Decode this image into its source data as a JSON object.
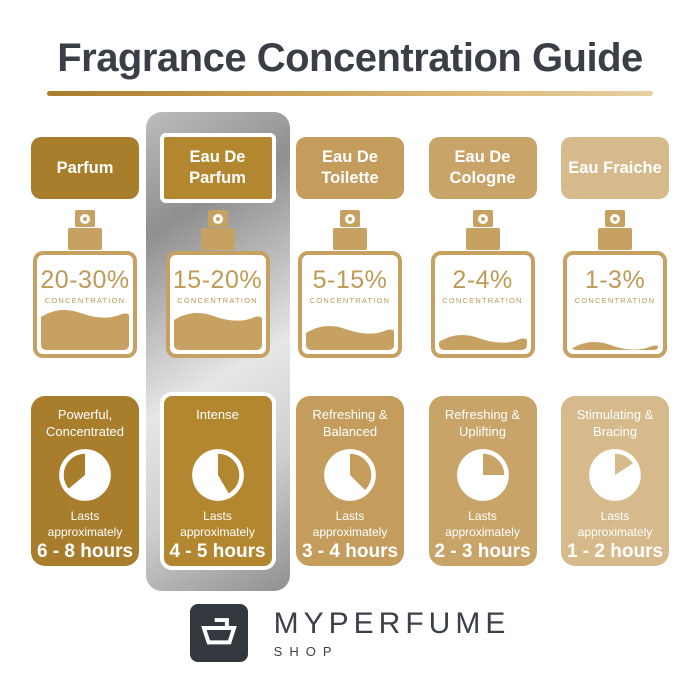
{
  "title": "Fragrance Concentration Guide",
  "concentration_label": "CONCENTRATION",
  "lasts_label": "Lasts approximately",
  "columns": [
    {
      "name": "Parfum",
      "concentration": "20-30%",
      "bottle_fill_pct": 42,
      "character": "Powerful, Concentrated",
      "duration": "6 - 8 hours",
      "color": "#a87d2c",
      "highlighted": false,
      "clock": {
        "white_start_deg": 0,
        "white_end_deg": 230
      }
    },
    {
      "name": "Eau De Parfum",
      "concentration": "15-20%",
      "bottle_fill_pct": 39,
      "character": "Intense",
      "duration": "4 - 5 hours",
      "color": "#b2872f",
      "highlighted": true,
      "clock": {
        "white_start_deg": 150,
        "white_end_deg": 360
      }
    },
    {
      "name": "Eau De Toilette",
      "concentration": "5-15%",
      "bottle_fill_pct": 26,
      "character": "Refreshing & Balanced",
      "duration": "3 - 4 hours",
      "color": "#c49d5c",
      "highlighted": false,
      "clock": {
        "white_start_deg": 135,
        "white_end_deg": 360
      }
    },
    {
      "name": "Eau De Cologne",
      "concentration": "2-4%",
      "bottle_fill_pct": 17,
      "character": "Refreshing & Uplifting",
      "duration": "2 - 3 hours",
      "color": "#c9a468",
      "highlighted": false,
      "clock": {
        "white_start_deg": 90,
        "white_end_deg": 360
      }
    },
    {
      "name": "Eau Fraiche",
      "concentration": "1-3%",
      "bottle_fill_pct": 10,
      "character": "Stimulating & Bracing",
      "duration": "1 - 2 hours",
      "color": "#d6ba8c",
      "highlighted": false,
      "clock": {
        "white_start_deg": 57,
        "white_end_deg": 360
      }
    }
  ],
  "brand": {
    "name": "MYPERFUME",
    "sub": "SHOP"
  },
  "colors": {
    "title_text": "#3a3e46",
    "bottle_gold": "#c7a161",
    "bottle_text": "#bf9a55",
    "underline_gradient": [
      "#a97c2a",
      "#e6cfa0"
    ],
    "highlight_silver": "#a9a9a9",
    "logo_background": "#33383f",
    "brand_text": "#3b4049"
  }
}
